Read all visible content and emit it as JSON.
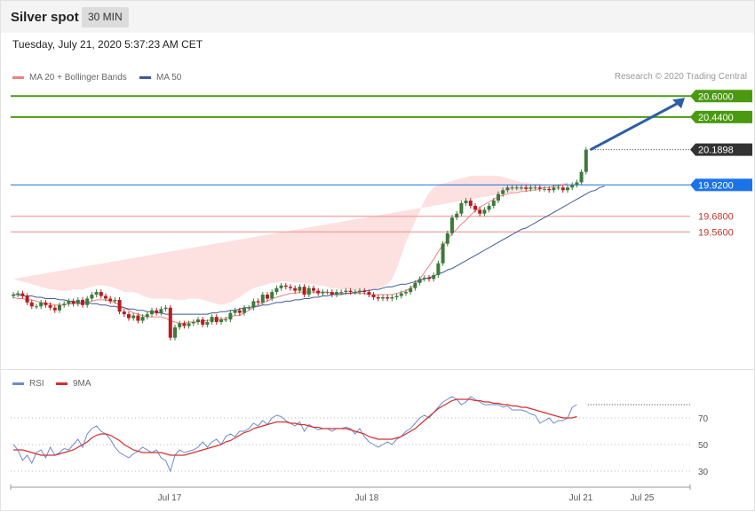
{
  "header": {
    "title": "Silver spot",
    "timeframe": "30 MIN"
  },
  "datetime": "Tuesday, July 21, 2020 5:37:23 AM CET",
  "legend": {
    "ma20_label": "MA 20 + Bollinger Bands",
    "ma50_label": "MA 50",
    "credit": "Research © 2020 Trading Central"
  },
  "rsi_legend": {
    "rsi_label": "RSI",
    "ma_label": "9MA"
  },
  "colors": {
    "bull": "#3d7a3d",
    "bear": "#b71c1c",
    "ma20": "#f08080",
    "ma50": "#3c5a9a",
    "band": "#fde0e0",
    "resistance": "#4a9a10",
    "pivot": "#1a73e8",
    "support": "#f2a0a0",
    "arrow": "#2d5da8",
    "rsi": "#6a8bd0",
    "rsi_ma": "#d32f2f"
  },
  "chart_data": [
    {
      "type": "candlestick",
      "title": "Silver spot",
      "interval": "30 MIN",
      "x_labels": [
        "Jul 17",
        "Jul 18",
        "Jul 21",
        "Jul 25"
      ],
      "ylim": [
        18.53,
        20.67
      ],
      "last_price": 20.1898,
      "levels": [
        {
          "kind": "resistance",
          "value": 20.6,
          "label": "20.6000"
        },
        {
          "kind": "resistance",
          "value": 20.44,
          "label": "20.4400"
        },
        {
          "kind": "last",
          "value": 20.1898,
          "label": "20.1898"
        },
        {
          "kind": "pivot",
          "value": 19.92,
          "label": "19.9200"
        },
        {
          "kind": "support",
          "value": 19.68,
          "label": "19.6800"
        },
        {
          "kind": "support",
          "value": 19.56,
          "label": "19.5600"
        }
      ],
      "target_arrow": {
        "from": 20.19,
        "to": 20.6
      },
      "series": [
        {
          "name": "MA 20 + Bollinger Bands"
        },
        {
          "name": "MA 50"
        }
      ],
      "close": [
        19.08,
        19.09,
        19.07,
        19.02,
        18.99,
        18.99,
        19.02,
        19.0,
        18.98,
        18.96,
        19.0,
        19.01,
        19.03,
        19.01,
        19.04,
        19.0,
        19.05,
        19.08,
        19.1,
        19.07,
        19.05,
        19.03,
        19.04,
        18.95,
        18.93,
        18.9,
        18.92,
        18.88,
        18.91,
        18.93,
        18.96,
        18.94,
        18.97,
        18.98,
        18.75,
        18.83,
        18.86,
        18.84,
        18.86,
        18.87,
        18.89,
        18.85,
        18.87,
        18.91,
        18.87,
        18.89,
        18.89,
        18.94,
        18.96,
        18.94,
        18.98,
        18.98,
        19.03,
        19.02,
        19.08,
        19.05,
        19.1,
        19.13,
        19.15,
        19.14,
        19.13,
        19.11,
        19.14,
        19.08,
        19.13,
        19.11,
        19.09,
        19.1,
        19.1,
        19.08,
        19.1,
        19.1,
        19.11,
        19.1,
        19.1,
        19.11,
        19.1,
        19.08,
        19.06,
        19.05,
        19.06,
        19.05,
        19.06,
        19.07,
        19.09,
        19.1,
        19.13,
        19.17,
        19.2,
        19.21,
        19.2,
        19.23,
        19.32,
        19.47,
        19.55,
        19.67,
        19.7,
        19.78,
        19.8,
        19.76,
        19.73,
        19.7,
        19.73,
        19.76,
        19.8,
        19.85,
        19.88,
        19.9,
        19.9,
        19.9,
        19.9,
        19.89,
        19.9,
        19.9,
        19.89,
        19.89,
        19.88,
        19.9,
        19.9,
        19.88,
        19.9,
        19.92,
        19.94,
        20.02,
        20.19
      ],
      "sma20": [
        19.06,
        19.05,
        19.05,
        19.04,
        19.04,
        19.03,
        19.02,
        19.01,
        19.01,
        19.0,
        19.0,
        19.0,
        19.01,
        19.01,
        19.01,
        19.01,
        19.02,
        19.03,
        19.04,
        19.04,
        19.04,
        19.03,
        19.02,
        19.0,
        18.98,
        18.96,
        18.94,
        18.93,
        18.92,
        18.91,
        18.91,
        18.91,
        18.91,
        18.9,
        18.88,
        18.87,
        18.86,
        18.86,
        18.87,
        18.87,
        18.87,
        18.88,
        18.88,
        18.89,
        18.89,
        18.89,
        18.9,
        18.91,
        18.92,
        18.92,
        18.94,
        18.96,
        18.98,
        19.0,
        19.02,
        19.03,
        19.05,
        19.06,
        19.07,
        19.08,
        19.09,
        19.09,
        19.1,
        19.1,
        19.1,
        19.1,
        19.1,
        19.1,
        19.1,
        19.09,
        19.09,
        19.09,
        19.09,
        19.09,
        19.09,
        19.09,
        19.09,
        19.08,
        19.08,
        19.08,
        19.08,
        19.08,
        19.08,
        19.09,
        19.1,
        19.11,
        19.13,
        19.16,
        19.2,
        19.25,
        19.3,
        19.35,
        19.41,
        19.46,
        19.5,
        19.55,
        19.58,
        19.62,
        19.65,
        19.69,
        19.72,
        19.75,
        19.77,
        19.79,
        19.81,
        19.83,
        19.84,
        19.85,
        19.86,
        19.86,
        19.87,
        19.87,
        19.88,
        19.88,
        19.89,
        19.9,
        19.9,
        19.91,
        19.91,
        19.92,
        19.93
      ],
      "bb_upper": [
        19.2,
        19.19,
        19.18,
        19.17,
        19.16,
        19.15,
        19.14,
        19.13,
        19.12,
        19.12,
        19.11,
        19.11,
        19.11,
        19.12,
        19.12,
        19.12,
        19.13,
        19.14,
        19.15,
        19.15,
        19.15,
        19.14,
        19.13,
        19.12,
        19.1,
        19.1,
        19.1,
        19.09,
        19.07,
        19.06,
        19.05,
        19.05,
        19.05,
        19.05,
        19.05,
        19.04,
        19.04,
        19.04,
        19.05,
        19.05,
        19.05,
        19.04,
        19.03,
        19.02,
        19.01,
        19.0,
        19.01,
        19.02,
        19.04,
        19.06,
        19.09,
        19.11,
        19.13,
        19.14,
        19.15,
        19.16,
        19.17,
        19.17,
        19.18,
        19.18,
        19.18,
        19.17,
        19.17,
        19.17,
        19.16,
        19.16,
        19.15,
        19.15,
        19.14,
        19.13,
        19.13,
        19.12,
        19.12,
        19.12,
        19.11,
        19.11,
        19.12,
        19.12,
        19.12,
        19.13,
        19.14,
        19.16,
        19.2,
        19.28,
        19.38,
        19.48,
        19.56,
        19.64,
        19.72,
        19.8,
        19.86,
        19.9,
        19.92,
        19.93,
        19.94,
        19.95,
        19.96,
        19.97,
        19.98,
        19.99,
        19.99,
        19.99,
        19.99,
        19.99,
        19.99,
        19.99,
        19.98,
        19.97,
        19.96,
        19.95,
        19.94,
        19.94,
        19.93,
        19.93,
        19.93,
        19.92,
        19.92,
        19.91,
        19.91,
        19.92,
        19.94
      ],
      "bb_lower": [
        18.94,
        18.93,
        18.93,
        18.92,
        18.92,
        18.91,
        18.9,
        18.9,
        18.9,
        18.89,
        18.89,
        18.89,
        18.9,
        18.9,
        18.91,
        18.91,
        18.92,
        18.93,
        18.93,
        18.93,
        18.92,
        18.91,
        18.89,
        18.86,
        18.84,
        18.82,
        18.79,
        18.77,
        18.76,
        18.76,
        18.76,
        18.77,
        18.77,
        18.76,
        18.74,
        18.73,
        18.72,
        18.72,
        18.73,
        18.73,
        18.73,
        18.73,
        18.74,
        18.75,
        18.76,
        18.77,
        18.78,
        18.79,
        18.8,
        18.8,
        18.81,
        18.83,
        18.85,
        18.87,
        18.89,
        18.91,
        18.93,
        18.95,
        18.97,
        18.99,
        19.0,
        19.01,
        19.02,
        19.03,
        19.04,
        19.04,
        19.05,
        19.05,
        19.05,
        19.05,
        19.05,
        19.05,
        19.05,
        19.05,
        19.05,
        19.05,
        19.05,
        19.04,
        19.04,
        19.03,
        19.03,
        19.02,
        19.02,
        19.02,
        19.02,
        19.02,
        19.03,
        19.04,
        19.06,
        19.08,
        19.11,
        19.15,
        19.2,
        19.26,
        19.32,
        19.38,
        19.44,
        19.5,
        19.56,
        19.61,
        19.65,
        19.7,
        19.74,
        19.77,
        19.8,
        19.82,
        19.83,
        19.84,
        19.84,
        19.84,
        19.84,
        19.84,
        19.85,
        19.85,
        19.85,
        19.85,
        19.86,
        19.86,
        19.86,
        19.86,
        19.86
      ],
      "sma50": [
        19.08,
        19.08,
        19.07,
        19.07,
        19.07,
        19.06,
        19.06,
        19.05,
        19.05,
        19.05,
        19.04,
        19.04,
        19.03,
        19.03,
        19.02,
        19.02,
        19.02,
        19.01,
        19.01,
        19.0,
        19.0,
        18.99,
        18.99,
        18.98,
        18.98,
        18.97,
        18.97,
        18.96,
        18.96,
        18.95,
        18.95,
        18.94,
        18.94,
        18.93,
        18.93,
        18.93,
        18.93,
        18.93,
        18.93,
        18.93,
        18.93,
        18.93,
        18.93,
        18.94,
        18.94,
        18.95,
        18.95,
        18.96,
        18.96,
        18.97,
        18.98,
        18.98,
        18.99,
        18.99,
        19.0,
        19.0,
        19.01,
        19.02,
        19.02,
        19.03,
        19.03,
        19.04,
        19.04,
        19.05,
        19.05,
        19.06,
        19.06,
        19.07,
        19.07,
        19.08,
        19.08,
        19.08,
        19.09,
        19.09,
        19.1,
        19.1,
        19.11,
        19.11,
        19.12,
        19.12,
        19.13,
        19.14,
        19.14,
        19.15,
        19.16,
        19.16,
        19.17,
        19.18,
        19.19,
        19.2,
        19.21,
        19.22,
        19.24,
        19.25,
        19.27,
        19.28,
        19.3,
        19.32,
        19.34,
        19.36,
        19.38,
        19.4,
        19.42,
        19.44,
        19.46,
        19.48,
        19.5,
        19.52,
        19.54,
        19.56,
        19.58,
        19.59,
        19.61,
        19.63,
        19.65,
        19.67,
        19.69,
        19.71,
        19.73,
        19.75,
        19.77,
        19.79,
        19.81,
        19.83,
        19.85,
        19.87,
        19.88,
        19.9,
        19.91
      ]
    },
    {
      "type": "line",
      "title": "RSI",
      "ylim": [
        20,
        90
      ],
      "yticks": [
        30,
        50,
        70
      ],
      "series": [
        {
          "name": "RSI",
          "values": [
            50,
            46,
            38,
            42,
            36,
            44,
            46,
            40,
            48,
            42,
            44,
            47,
            46,
            50,
            54,
            48,
            58,
            62,
            64,
            60,
            58,
            54,
            48,
            44,
            42,
            40,
            43,
            45,
            48,
            46,
            44,
            46,
            40,
            38,
            30,
            42,
            46,
            44,
            45,
            46,
            48,
            52,
            48,
            52,
            54,
            50,
            56,
            58,
            56,
            60,
            60,
            62,
            66,
            64,
            68,
            65,
            70,
            72,
            71,
            68,
            66,
            64,
            67,
            60,
            65,
            63,
            61,
            62,
            62,
            60,
            62,
            62,
            63,
            62,
            58,
            62,
            56,
            52,
            50,
            48,
            50,
            52,
            50,
            54,
            56,
            60,
            62,
            66,
            70,
            72,
            70,
            74,
            78,
            82,
            84,
            86,
            84,
            80,
            82,
            86,
            84,
            82,
            80,
            80,
            80,
            80,
            78,
            79,
            76,
            76,
            76,
            75,
            73,
            72,
            66,
            68,
            70,
            66,
            68,
            68,
            70,
            78,
            80
          ]
        },
        {
          "name": "9MA",
          "values": [
            46,
            46,
            46,
            45,
            44,
            43,
            42,
            42,
            42,
            42,
            43,
            44,
            45,
            46,
            48,
            50,
            52,
            55,
            57,
            58,
            58,
            57,
            55,
            53,
            50,
            48,
            46,
            45,
            44,
            44,
            44,
            44,
            44,
            43,
            42,
            42,
            42,
            42,
            43,
            44,
            45,
            46,
            47,
            48,
            49,
            50,
            52,
            53,
            55,
            57,
            59,
            60,
            62,
            63,
            64,
            65,
            66,
            67,
            67,
            67,
            66,
            66,
            65,
            65,
            64,
            63,
            63,
            62,
            62,
            62,
            62,
            62,
            62,
            61,
            60,
            59,
            58,
            56,
            55,
            54,
            54,
            54,
            54,
            55,
            56,
            58,
            60,
            62,
            65,
            68,
            71,
            74,
            77,
            79,
            81,
            83,
            84,
            84,
            84,
            84,
            83,
            83,
            82,
            82,
            81,
            81,
            80,
            80,
            79,
            79,
            78,
            78,
            77,
            76,
            75,
            74,
            73,
            72,
            71,
            70,
            70,
            70,
            71
          ]
        }
      ]
    }
  ]
}
